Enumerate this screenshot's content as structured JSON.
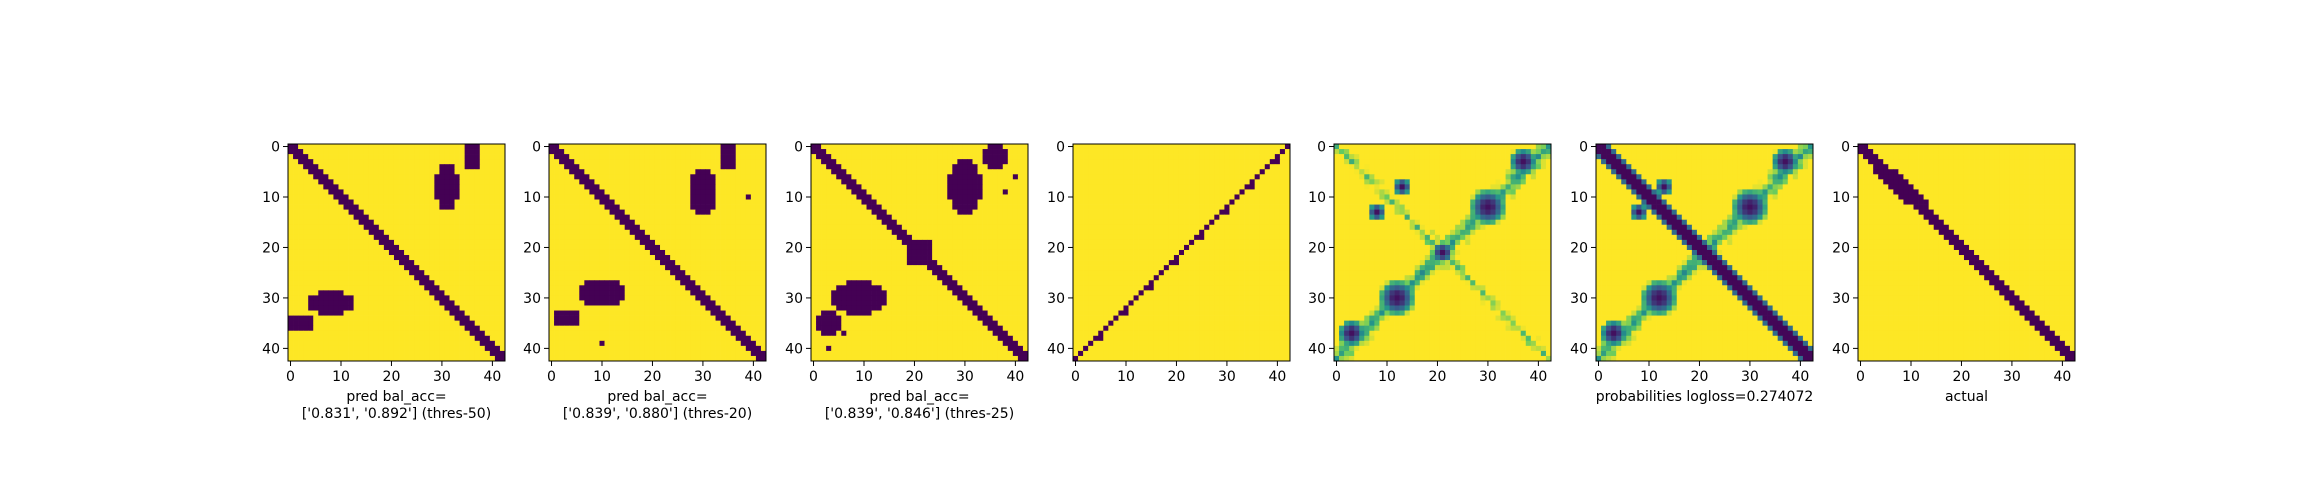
{
  "colors": {
    "low": "#440154",
    "high": "#fde725",
    "viridis": [
      "#440154",
      "#3b528b",
      "#21918c",
      "#5ec962",
      "#fde725"
    ]
  },
  "chart_data": [
    {
      "type": "heatmap",
      "kind": "binary",
      "size": 43,
      "xticks": [
        "0",
        "10",
        "20",
        "30",
        "40"
      ],
      "yticks": [
        "0",
        "10",
        "20",
        "30",
        "40"
      ],
      "xlabel": [
        "pred bal_acc=",
        "['0.831', '0.892'] (thres-50)"
      ]
    },
    {
      "type": "heatmap",
      "kind": "binary",
      "size": 43,
      "xticks": [
        "0",
        "10",
        "20",
        "30",
        "40"
      ],
      "yticks": [
        "0",
        "10",
        "20",
        "30",
        "40"
      ],
      "xlabel": [
        "pred bal_acc=",
        "['0.839', '0.880'] (thres-20)"
      ]
    },
    {
      "type": "heatmap",
      "kind": "binary",
      "size": 43,
      "xticks": [
        "0",
        "10",
        "20",
        "30",
        "40"
      ],
      "yticks": [
        "0",
        "10",
        "20",
        "30",
        "40"
      ],
      "xlabel": [
        "pred bal_acc=",
        "['0.839', '0.846'] (thres-25)"
      ]
    },
    {
      "type": "heatmap",
      "kind": "binary",
      "size": 43,
      "xticks": [
        "0",
        "10",
        "20",
        "30",
        "40"
      ],
      "yticks": [
        "0",
        "10",
        "20",
        "30",
        "40"
      ],
      "xlabel": []
    },
    {
      "type": "heatmap",
      "kind": "continuous",
      "size": 43,
      "xticks": [
        "0",
        "10",
        "20",
        "30",
        "40"
      ],
      "yticks": [
        "0",
        "10",
        "20",
        "30",
        "40"
      ],
      "xlabel": []
    },
    {
      "type": "heatmap",
      "kind": "continuous",
      "size": 43,
      "xticks": [
        "0",
        "10",
        "20",
        "30",
        "40"
      ],
      "yticks": [
        "0",
        "10",
        "20",
        "30",
        "40"
      ],
      "xlabel": [
        "probabilities logloss=0.274072"
      ]
    },
    {
      "type": "heatmap",
      "kind": "binary",
      "size": 43,
      "xticks": [
        "0",
        "10",
        "20",
        "30",
        "40"
      ],
      "yticks": [
        "0",
        "10",
        "20",
        "30",
        "40"
      ],
      "xlabel": [
        "actual"
      ]
    }
  ]
}
